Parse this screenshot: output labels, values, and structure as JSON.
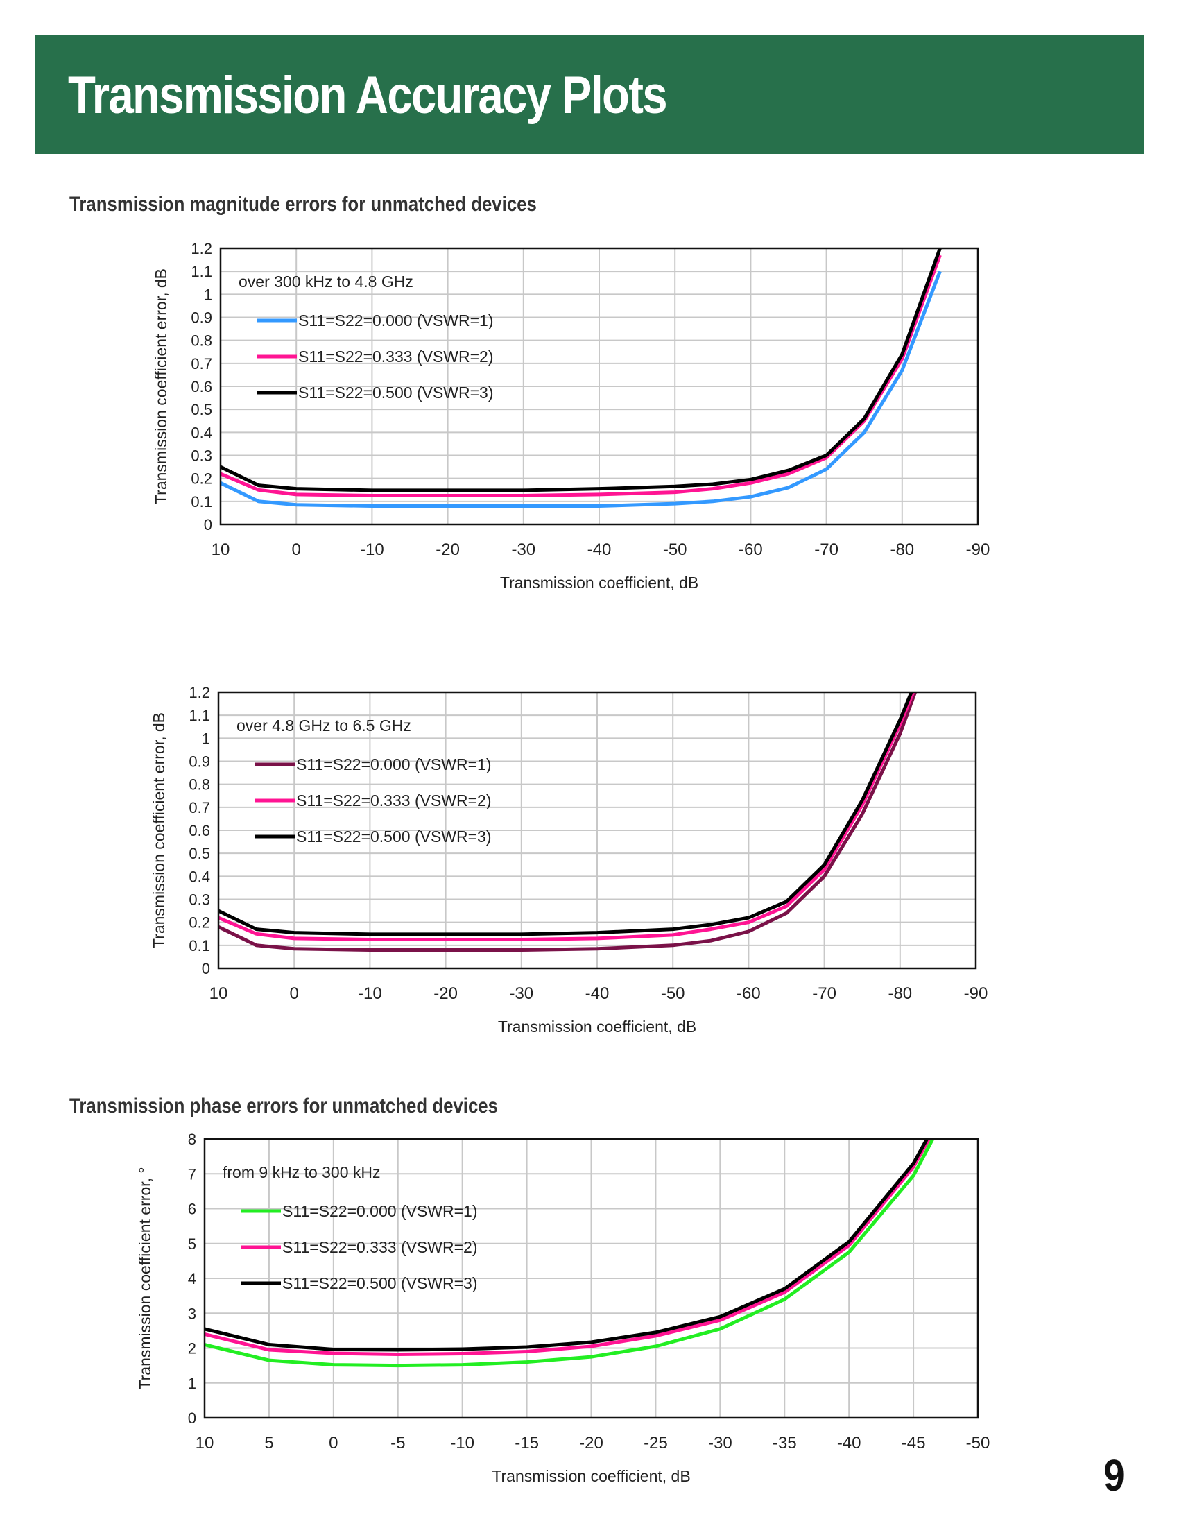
{
  "page": {
    "title": "Transmission Accuracy Plots",
    "page_number": "9"
  },
  "sections": {
    "magnitude_title": "Transmission magnitude errors for unmatched devices",
    "phase_title": "Transmission phase errors for unmatched devices"
  },
  "chart_data": [
    {
      "type": "line",
      "title": "",
      "annotation": "over 300 kHz to 4.8 GHz",
      "xlabel": "Transmission coefficient, dB",
      "ylabel": "Transmission coefficient error, dB",
      "xlim": [
        10,
        -90
      ],
      "ylim": [
        0,
        1.2
      ],
      "xticks": [
        10,
        0,
        -10,
        -20,
        -30,
        -40,
        -50,
        -60,
        -70,
        -80,
        -90
      ],
      "yticks": [
        0,
        0.1,
        0.2,
        0.3,
        0.4,
        0.5,
        0.6,
        0.7,
        0.8,
        0.9,
        1,
        1.1,
        1.2
      ],
      "grid": true,
      "legend_position": "top-left",
      "x": [
        10,
        5,
        0,
        -10,
        -20,
        -30,
        -40,
        -50,
        -55,
        -60,
        -65,
        -70,
        -75,
        -80,
        -85
      ],
      "series": [
        {
          "name": "S11=S22=0.000 (VSWR=1)",
          "color": "#3399ff",
          "values": [
            0.18,
            0.1,
            0.085,
            0.08,
            0.08,
            0.08,
            0.08,
            0.09,
            0.1,
            0.12,
            0.16,
            0.24,
            0.4,
            0.67,
            1.1
          ]
        },
        {
          "name": "S11=S22=0.333 (VSWR=2)",
          "color": "#ff1493",
          "values": [
            0.22,
            0.15,
            0.13,
            0.125,
            0.125,
            0.125,
            0.13,
            0.14,
            0.155,
            0.18,
            0.22,
            0.29,
            0.45,
            0.72,
            1.17
          ]
        },
        {
          "name": "S11=S22=0.500 (VSWR=3)",
          "color": "#000000",
          "values": [
            0.25,
            0.17,
            0.155,
            0.148,
            0.148,
            0.148,
            0.155,
            0.165,
            0.175,
            0.195,
            0.235,
            0.3,
            0.46,
            0.74,
            1.2
          ]
        }
      ]
    },
    {
      "type": "line",
      "title": "",
      "annotation": "over 4.8 GHz to 6.5 GHz",
      "xlabel": "Transmission coefficient, dB",
      "ylabel": "Transmission coefficient error, dB",
      "xlim": [
        10,
        -90
      ],
      "ylim": [
        0,
        1.2
      ],
      "xticks": [
        10,
        0,
        -10,
        -20,
        -30,
        -40,
        -50,
        -60,
        -70,
        -80,
        -90
      ],
      "yticks": [
        0,
        0.1,
        0.2,
        0.3,
        0.4,
        0.5,
        0.6,
        0.7,
        0.8,
        0.9,
        1,
        1.1,
        1.2
      ],
      "grid": true,
      "legend_position": "top-left",
      "x": [
        10,
        5,
        0,
        -10,
        -20,
        -30,
        -40,
        -50,
        -55,
        -60,
        -65,
        -70,
        -75,
        -80,
        -82
      ],
      "series": [
        {
          "name": "S11=S22=0.000 (VSWR=1)",
          "color": "#7a1148",
          "values": [
            0.18,
            0.1,
            0.085,
            0.08,
            0.08,
            0.08,
            0.085,
            0.1,
            0.12,
            0.16,
            0.24,
            0.4,
            0.67,
            1.02,
            1.2
          ]
        },
        {
          "name": "S11=S22=0.333 (VSWR=2)",
          "color": "#ff1493",
          "values": [
            0.22,
            0.15,
            0.13,
            0.125,
            0.125,
            0.125,
            0.13,
            0.145,
            0.17,
            0.2,
            0.27,
            0.43,
            0.71,
            1.06,
            1.22
          ]
        },
        {
          "name": "S11=S22=0.500 (VSWR=3)",
          "color": "#000000",
          "values": [
            0.25,
            0.17,
            0.155,
            0.148,
            0.148,
            0.148,
            0.155,
            0.17,
            0.19,
            0.22,
            0.29,
            0.45,
            0.73,
            1.08,
            1.24
          ]
        }
      ]
    },
    {
      "type": "line",
      "title": "",
      "annotation": "from 9 kHz to 300 kHz",
      "xlabel": "Transmission coefficient, dB",
      "ylabel": "Transmission coefficient error, °",
      "xlim": [
        10,
        -50
      ],
      "ylim": [
        0,
        8
      ],
      "xticks": [
        10,
        5,
        0,
        -5,
        -10,
        -15,
        -20,
        -25,
        -30,
        -35,
        -40,
        -45,
        -50
      ],
      "yticks": [
        0,
        1,
        2,
        3,
        4,
        5,
        6,
        7,
        8
      ],
      "grid": true,
      "legend_position": "top-left",
      "x": [
        10,
        5,
        0,
        -5,
        -10,
        -15,
        -20,
        -25,
        -30,
        -35,
        -40,
        -45,
        -46.5
      ],
      "series": [
        {
          "name": "S11=S22=0.000 (VSWR=1)",
          "color": "#22ee22",
          "values": [
            2.1,
            1.65,
            1.52,
            1.5,
            1.52,
            1.6,
            1.75,
            2.05,
            2.55,
            3.4,
            4.75,
            6.95,
            8.0
          ]
        },
        {
          "name": "S11=S22=0.333 (VSWR=2)",
          "color": "#ff1493",
          "values": [
            2.4,
            1.95,
            1.85,
            1.82,
            1.84,
            1.9,
            2.05,
            2.35,
            2.8,
            3.6,
            4.95,
            7.2,
            8.2
          ]
        },
        {
          "name": "S11=S22=0.500 (VSWR=3)",
          "color": "#000000",
          "values": [
            2.55,
            2.1,
            1.96,
            1.95,
            1.97,
            2.03,
            2.17,
            2.45,
            2.9,
            3.7,
            5.05,
            7.3,
            8.3
          ]
        }
      ]
    }
  ]
}
